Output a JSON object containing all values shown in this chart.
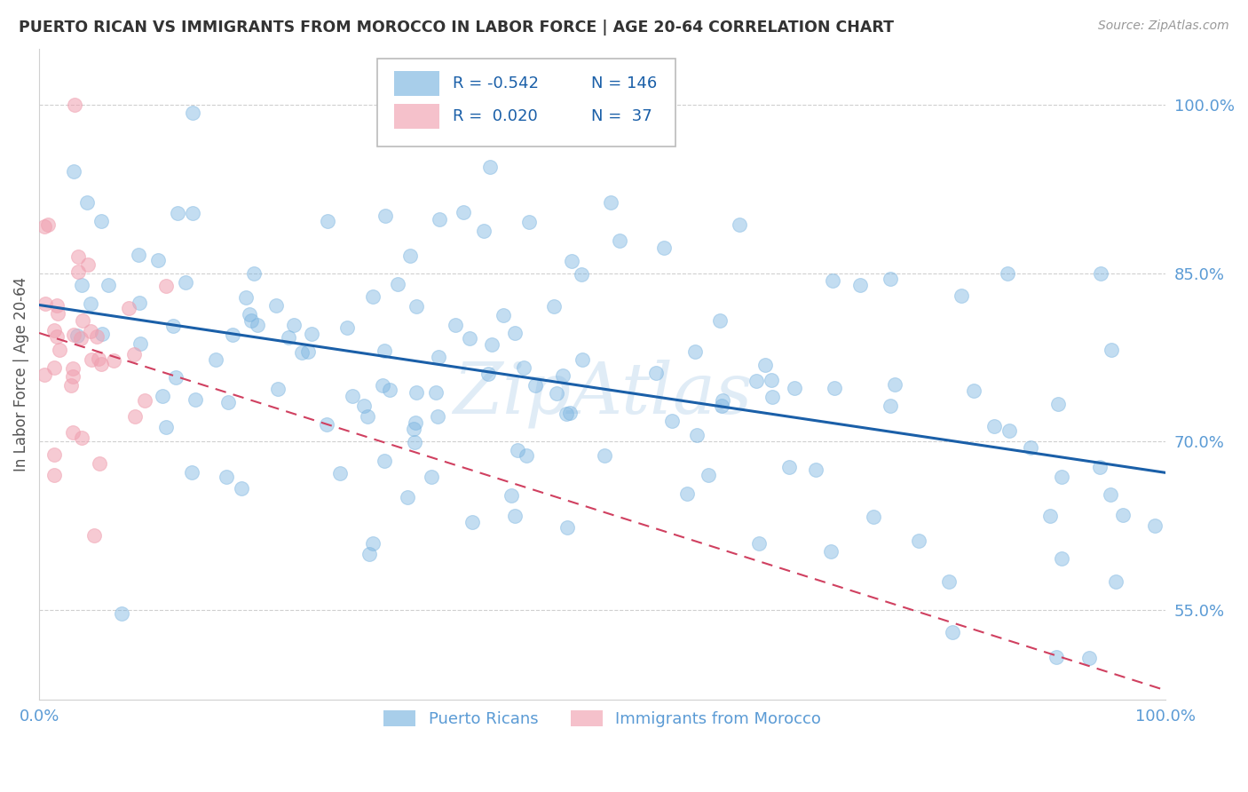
{
  "title": "PUERTO RICAN VS IMMIGRANTS FROM MOROCCO IN LABOR FORCE | AGE 20-64 CORRELATION CHART",
  "source_text": "Source: ZipAtlas.com",
  "ylabel": "In Labor Force | Age 20-64",
  "watermark": "ZipAtlas",
  "legend_blue_r": "-0.542",
  "legend_blue_n": "146",
  "legend_pink_r": " 0.020",
  "legend_pink_n": " 37",
  "blue_color": "#7ab4e0",
  "pink_color": "#f0a0b0",
  "trend_blue_color": "#1a5fa8",
  "trend_pink_color": "#d04060",
  "tick_color": "#5b9bd5",
  "ylabel_color": "#555555",
  "title_color": "#333333",
  "source_color": "#999999",
  "watermark_color": "#c8ddf0",
  "background_color": "#ffffff",
  "grid_color": "#d0d0d0",
  "xlim": [
    0.0,
    1.0
  ],
  "ylim": [
    0.47,
    1.05
  ],
  "xticks": [
    0.0,
    1.0
  ],
  "xtick_labels": [
    "0.0%",
    "100.0%"
  ],
  "yticks": [
    0.55,
    0.7,
    0.85,
    1.0
  ],
  "ytick_labels": [
    "55.0%",
    "70.0%",
    "85.0%",
    "100.0%"
  ]
}
